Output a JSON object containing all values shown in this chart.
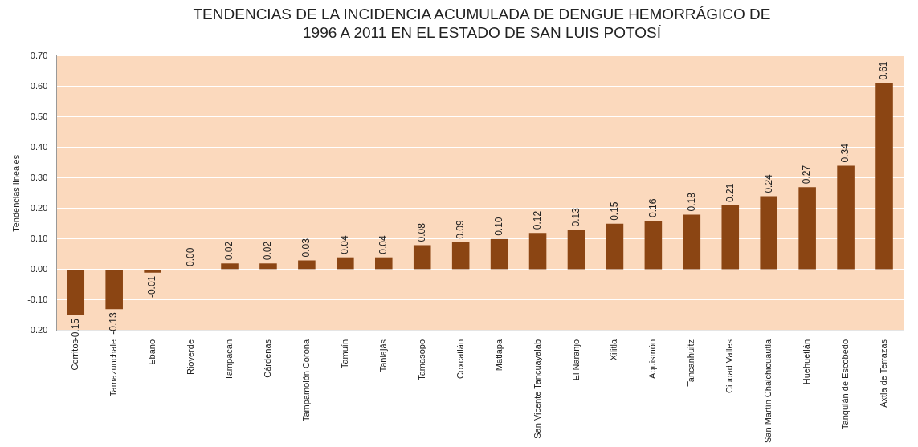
{
  "chart_data": {
    "type": "bar",
    "title": "TENDENCIAS DE LA INCIDENCIA ACUMULADA DE DENGUE HEMORRÁGICO DE 1996 A 2011 EN EL ESTADO DE SAN LUIS POTOSÍ",
    "ylabel": "Tendencias lineales",
    "categories": [
      "Cerritos",
      "Tamazunchale",
      "Ebano",
      "Rioverde",
      "Tampacán",
      "Cárdenas",
      "Tampamolón Corona",
      "Tamuín",
      "Tanlajás",
      "Tamasopo",
      "Coxcatlán",
      "Matlapa",
      "San Vicente Tancuayalab",
      "El Naranjo",
      "Xilitla",
      "Aquismón",
      "Tancanhuitz",
      "Ciudad Valles",
      "San Martín Chalchicuautla",
      "Huehuetlán",
      "Tanquián de Escobedo",
      "Axtla de Terrazas"
    ],
    "values": [
      -0.15,
      -0.13,
      -0.01,
      0.0,
      0.02,
      0.02,
      0.03,
      0.04,
      0.04,
      0.08,
      0.09,
      0.1,
      0.12,
      0.13,
      0.15,
      0.16,
      0.18,
      0.21,
      0.24,
      0.27,
      0.34,
      0.61
    ],
    "color": "#8b4513",
    "ylim": [
      -0.2,
      0.7
    ],
    "yticks": [
      {
        "value": -0.2,
        "label": "-0.20"
      },
      {
        "value": -0.1,
        "label": "-0.10"
      },
      {
        "value": 0,
        "label": "0.00"
      },
      {
        "value": 0.1,
        "label": "0.10"
      },
      {
        "value": 0.2,
        "label": "0.20"
      },
      {
        "value": 0.3,
        "label": "0.30"
      },
      {
        "value": 0.4,
        "label": "0.40"
      },
      {
        "value": 0.5,
        "label": "0.50"
      },
      {
        "value": 0.6,
        "label": "0.60"
      },
      {
        "value": 0.7,
        "label": "0.70"
      }
    ],
    "value_labels": [
      "-0.15",
      "-0.13",
      "-0.01",
      "0.00",
      "0.02",
      "0.02",
      "0.03",
      "0.04",
      "0.04",
      "0.08",
      "0.09",
      "0.10",
      "0.12",
      "0.13",
      "0.15",
      "0.16",
      "0.18",
      "0.21",
      "0.24",
      "0.27",
      "0.34",
      "0.61"
    ],
    "grid": "y"
  }
}
